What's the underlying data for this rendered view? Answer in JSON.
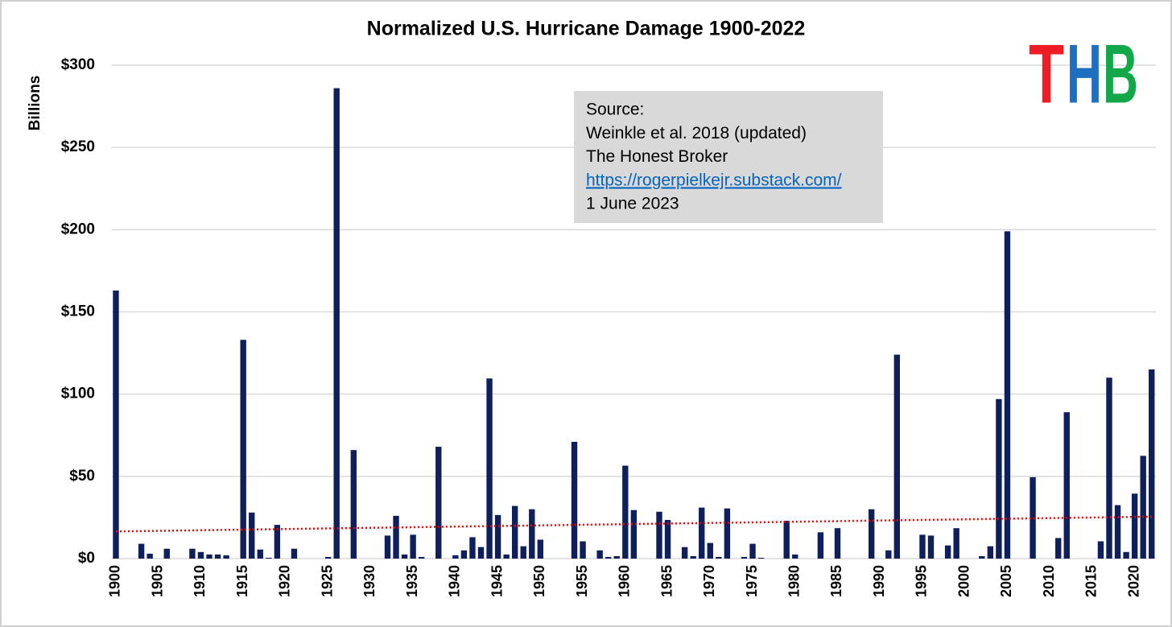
{
  "chart_data": {
    "type": "bar",
    "title": "Normalized U.S. Hurricane Damage 1900-2022",
    "y_label": "Billions",
    "categories": [
      "1900",
      null,
      null,
      null,
      null,
      "1905",
      null,
      null,
      null,
      null,
      "1910",
      null,
      null,
      null,
      null,
      "1915",
      null,
      null,
      null,
      null,
      "1920",
      null,
      null,
      null,
      null,
      "1925",
      null,
      null,
      null,
      null,
      "1930",
      null,
      null,
      null,
      null,
      "1935",
      null,
      null,
      null,
      null,
      "1940",
      null,
      null,
      null,
      null,
      "1945",
      null,
      null,
      null,
      null,
      "1950",
      null,
      null,
      null,
      null,
      "1955",
      null,
      null,
      null,
      null,
      "1960",
      null,
      null,
      null,
      null,
      "1965",
      null,
      null,
      null,
      null,
      "1970",
      null,
      null,
      null,
      null,
      "1975",
      null,
      null,
      null,
      null,
      "1980",
      null,
      null,
      null,
      null,
      "1985",
      null,
      null,
      null,
      null,
      "1990",
      null,
      null,
      null,
      null,
      "1995",
      null,
      null,
      null,
      null,
      "2000",
      null,
      null,
      null,
      null,
      "2005",
      null,
      null,
      null,
      null,
      "2010",
      null,
      null,
      null,
      null,
      "2015",
      null,
      null,
      null,
      null,
      "2020",
      null,
      null
    ],
    "values": [
      163,
      0,
      0,
      9,
      3,
      0,
      6,
      0,
      0,
      6,
      4,
      2.5,
      2.5,
      2,
      0,
      133,
      28,
      5.5,
      0.5,
      20.5,
      0,
      6,
      0,
      0,
      0,
      1,
      286,
      0,
      66,
      0,
      0,
      0,
      14,
      26,
      2.5,
      14.5,
      1,
      0,
      68,
      0,
      2,
      5,
      13,
      7,
      109.5,
      26.5,
      2.5,
      32,
      7.5,
      30,
      11.5,
      0,
      0,
      0,
      71,
      10.5,
      0,
      5,
      1,
      1.5,
      56.5,
      29.5,
      0,
      0,
      28.5,
      23.5,
      0,
      7,
      1.5,
      31,
      9.5,
      1,
      30.5,
      0,
      1,
      9,
      0.5,
      0,
      0,
      23,
      2.5,
      0,
      0,
      16,
      0,
      18.5,
      0,
      0,
      0,
      30,
      0,
      5,
      124,
      0,
      0,
      14.5,
      14,
      0,
      8,
      18.5,
      0,
      0,
      1.5,
      7.5,
      97,
      199,
      0,
      0,
      49.5,
      0,
      0,
      12.5,
      89,
      0,
      0,
      0,
      10.5,
      110,
      32.5,
      4,
      39.5,
      62.5,
      115
    ],
    "color": "#0f1f5c",
    "trend": {
      "values": [
        16.5,
        25.5
      ],
      "color": "#ff0000"
    },
    "ylim": [
      0,
      300
    ],
    "yticks": [
      {
        "value": 0,
        "label": "$0"
      },
      {
        "value": 50,
        "label": "$50"
      },
      {
        "value": 100,
        "label": "$100"
      },
      {
        "value": 150,
        "label": "$150"
      },
      {
        "value": 200,
        "label": "$200"
      },
      {
        "value": 250,
        "label": "$250"
      },
      {
        "value": 300,
        "label": "$300"
      }
    ],
    "grid": true,
    "annotation": {
      "lines": [
        "Source:",
        "Weinkle et al. 2018 (updated)",
        "The Honest Broker",
        "https://rogerpielkejr.substack.com/",
        "1 June 2023"
      ]
    },
    "logo": [
      {
        "text": "T",
        "color": "#ee1c25"
      },
      {
        "text": "H",
        "color": "#1f6fc0"
      },
      {
        "text": "B",
        "color": "#12a84a"
      }
    ]
  }
}
